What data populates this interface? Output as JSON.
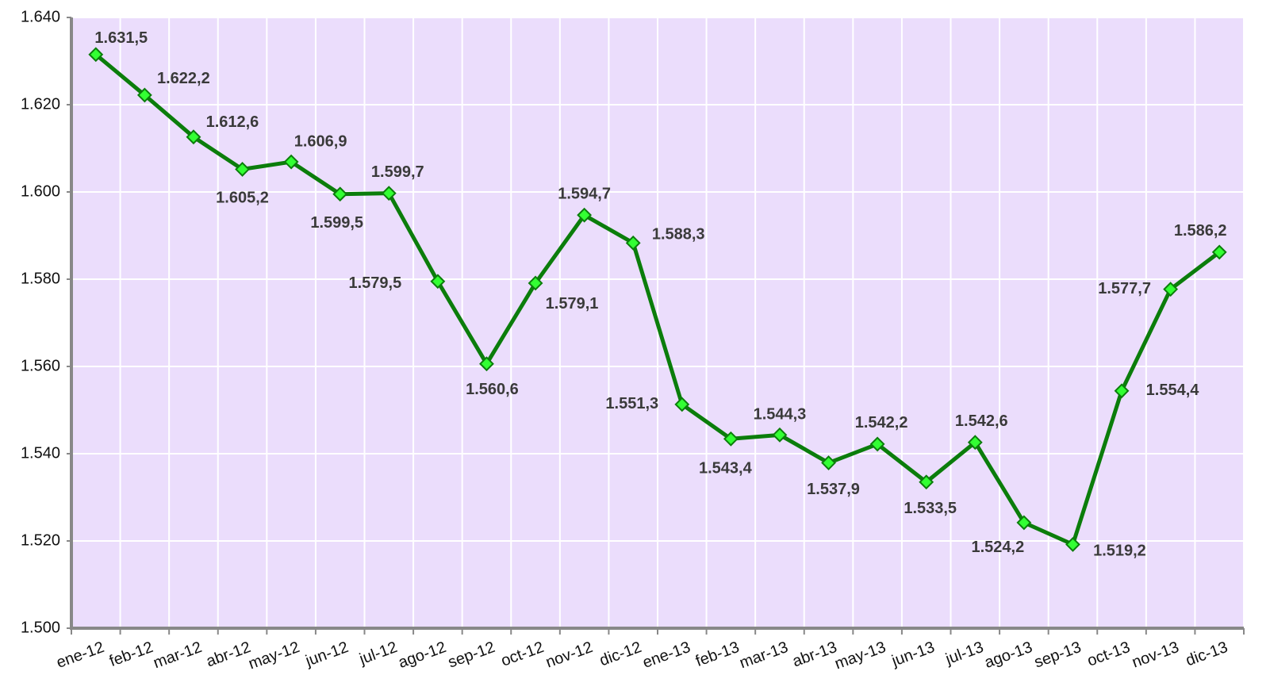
{
  "chart_data": {
    "type": "line",
    "categories": [
      "ene-12",
      "feb-12",
      "mar-12",
      "abr-12",
      "may-12",
      "jun-12",
      "jul-12",
      "ago-12",
      "sep-12",
      "oct-12",
      "nov-12",
      "dic-12",
      "ene-13",
      "feb-13",
      "mar-13",
      "abr-13",
      "may-13",
      "jun-13",
      "jul-13",
      "ago-13",
      "sep-13",
      "oct-13",
      "nov-13",
      "dic-13"
    ],
    "series": [
      {
        "color": "#0b7d0b",
        "values": [
          1631.5,
          1622.2,
          1612.6,
          1605.2,
          1606.9,
          1599.5,
          1599.7,
          1579.5,
          1560.6,
          1579.1,
          1594.7,
          1588.3,
          1551.3,
          1543.4,
          1544.3,
          1537.9,
          1542.2,
          1533.5,
          1542.6,
          1524.2,
          1519.2,
          1554.4,
          1577.7,
          1586.2
        ],
        "value_labels": [
          "1.631,5",
          "1.622,2",
          "1.612,6",
          "1.605,2",
          "1.606,9",
          "1.599,5",
          "1.599,7",
          "1.579,5",
          "1.560,6",
          "1.579,1",
          "1.594,7",
          "1.588,3",
          "1.551,3",
          "1.543,4",
          "1.544,3",
          "1.537,9",
          "1.542,2",
          "1.533,5",
          "1.542,6",
          "1.524,2",
          "1.519,2",
          "1.554,4",
          "1.577,7",
          "1.586,2"
        ]
      }
    ],
    "ylim": [
      1500,
      1640
    ],
    "yticks": [
      {
        "value": 1500,
        "label": "1.500"
      },
      {
        "value": 1520,
        "label": "1.520"
      },
      {
        "value": 1540,
        "label": "1.540"
      },
      {
        "value": 1560,
        "label": "1.560"
      },
      {
        "value": 1580,
        "label": "1.580"
      },
      {
        "value": 1600,
        "label": "1.600"
      },
      {
        "value": 1620,
        "label": "1.620"
      },
      {
        "value": 1640,
        "label": "1.640"
      }
    ],
    "grid": true,
    "background": "#ebddfc",
    "marker_color": "#33ff33"
  }
}
